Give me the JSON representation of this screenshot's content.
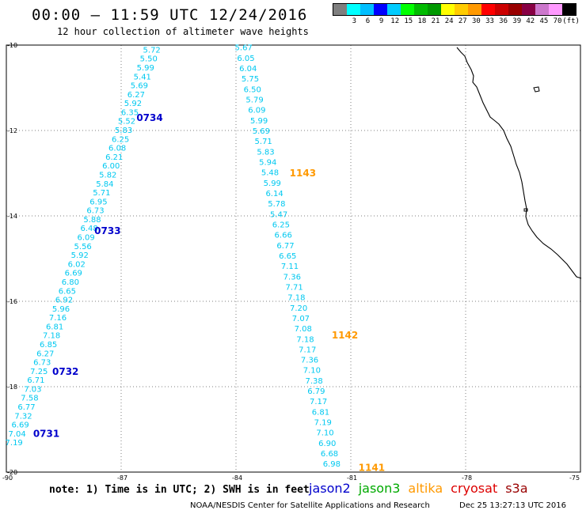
{
  "title": "00:00 – 11:59 UTC 12/24/2016",
  "subtitle": "12 hour collection of altimeter wave heights",
  "legend": {
    "colors": [
      "#7f7f7f",
      "#00ffff",
      "#00bfff",
      "#0000ff",
      "#00ccff",
      "#00ff00",
      "#00bb00",
      "#009900",
      "#ffff00",
      "#ffcc00",
      "#ff9900",
      "#ff0000",
      "#cc0000",
      "#990000",
      "#880044",
      "#cc77cc",
      "#ff99ff",
      "#000000"
    ],
    "labels": [
      "3",
      "6",
      "9",
      "12",
      "15",
      "18",
      "21",
      "24",
      "27",
      "30",
      "33",
      "36",
      "39",
      "42",
      "45",
      "70",
      "(ft)"
    ]
  },
  "map": {
    "lat_range": [
      -20,
      -10
    ],
    "lon_range": [
      -90,
      -75
    ],
    "lat_labels": [
      "-10",
      "-12",
      "-14",
      "-16",
      "-18",
      "-20"
    ],
    "lon_labels": [
      "-90",
      "-87",
      "-84",
      "-81",
      "-78",
      "-75"
    ],
    "grid_lines": true,
    "tracks": [
      {
        "satellite": "jason2",
        "color": "#00c8f0",
        "start": [
          -86.2,
          -10.1
        ],
        "end": [
          -89.8,
          -19.3
        ],
        "values": [
          "5.72",
          "5.50",
          "5.99",
          "5.41",
          "5.69",
          "6.27",
          "5.92",
          "6.35",
          "5.52",
          "5.83",
          "6.25",
          "6.08",
          "6.21",
          "6.00",
          "5.82",
          "5.84",
          "5.71",
          "6.95",
          "6.73",
          "5.88",
          "6.48",
          "6.09",
          "5.56",
          "5.92",
          "6.02",
          "6.69",
          "6.80",
          "6.65",
          "6.92",
          "5.96",
          "7.16",
          "6.81",
          "7.18",
          "6.85",
          "6.27",
          "6.73",
          "7.25",
          "6.71",
          "7.03",
          "7.58",
          "6.77",
          "7.32",
          "6.69",
          "7.04",
          "7.19"
        ],
        "pass_labels": [
          {
            "text": "0734",
            "lat": -11.7,
            "lon": -86.6
          },
          {
            "text": "0733",
            "lat": -14.35,
            "lon": -87.7
          },
          {
            "text": "0732",
            "lat": -17.65,
            "lon": -88.8
          },
          {
            "text": "0731",
            "lat": -19.1,
            "lon": -89.3
          }
        ]
      },
      {
        "satellite": "altika",
        "color": "#00c8f0",
        "start": [
          -83.8,
          -10.05
        ],
        "end": [
          -81.5,
          -19.8
        ],
        "values": [
          "5.67",
          "6.05",
          "6.04",
          "5.75",
          "6.50",
          "5.79",
          "6.09",
          "5.99",
          "5.69",
          "5.71",
          "5.83",
          "5.94",
          "5.48",
          "5.99",
          "6.14",
          "5.78",
          "5.47",
          "6.25",
          "6.66",
          "6.77",
          "6.65",
          "7.11",
          "7.36",
          "7.71",
          "7.18",
          "7.20",
          "7.07",
          "7.08",
          "7.18",
          "7.17",
          "7.36",
          "7.10",
          "7.38",
          "6.79",
          "7.17",
          "6.81",
          "7.19",
          "7.10",
          "6.90",
          "6.68",
          "6.98"
        ],
        "pass_labels": [
          {
            "text": "1143",
            "lat": -13.0,
            "lon": -82.6
          },
          {
            "text": "1142",
            "lat": -16.8,
            "lon": -81.5
          },
          {
            "text": "1141",
            "lat": -19.9,
            "lon": -80.8
          }
        ]
      }
    ]
  },
  "note": "note: 1) Time is in UTC; 2) SWH is in feet",
  "satellites": [
    {
      "name": "jason2",
      "color": "#0000cc"
    },
    {
      "name": "jason3",
      "color": "#00aa00"
    },
    {
      "name": "altika",
      "color": "#ff9900"
    },
    {
      "name": "cryosat",
      "color": "#dd0000"
    },
    {
      "name": "s3a",
      "color": "#990000"
    }
  ],
  "credit": "NOAA/NESDIS Center for Satellite Applications and Research",
  "generated": "Dec 25 13:27:13 UTC 2016"
}
